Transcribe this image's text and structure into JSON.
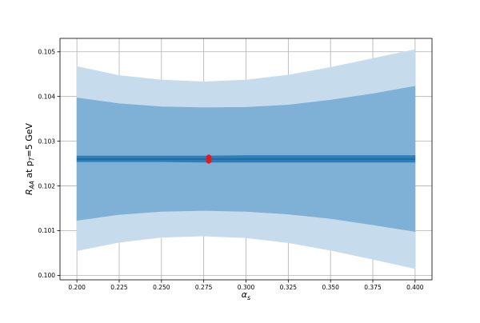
{
  "chart_data": {
    "type": "area",
    "xlim": [
      0.19,
      0.41
    ],
    "ylim": [
      0.0999,
      0.1053
    ],
    "xticks": [
      0.2,
      0.225,
      0.25,
      0.275,
      0.3,
      0.325,
      0.35,
      0.375,
      0.4
    ],
    "xtick_labels": [
      "0.200",
      "0.225",
      "0.250",
      "0.275",
      "0.300",
      "0.325",
      "0.350",
      "0.375",
      "0.400"
    ],
    "yticks": [
      0.1,
      0.101,
      0.102,
      0.103,
      0.104,
      0.105
    ],
    "ytick_labels": [
      "0.100",
      "0.101",
      "0.102",
      "0.103",
      "0.104",
      "0.105"
    ],
    "xlabel": "αs",
    "ylabel": "RAA at pT=5 GeV",
    "grid": true,
    "x": [
      0.2,
      0.225,
      0.25,
      0.275,
      0.3,
      0.325,
      0.35,
      0.375,
      0.4
    ],
    "bands": [
      {
        "role": "outer band",
        "color": "#c6dbec",
        "upper": [
          0.10467,
          0.10447,
          0.10437,
          0.10433,
          0.10437,
          0.10448,
          0.10465,
          0.10485,
          0.10505
        ],
        "lower": [
          0.10055,
          0.10074,
          0.10085,
          0.10088,
          0.10084,
          0.10073,
          0.10056,
          0.10036,
          0.10015
        ]
      },
      {
        "role": "middle band",
        "color": "#7fb0d6",
        "upper": [
          0.10397,
          0.10384,
          0.10377,
          0.10375,
          0.10376,
          0.10381,
          0.10392,
          0.10406,
          0.10423
        ],
        "lower": [
          0.10123,
          0.10136,
          0.10143,
          0.10145,
          0.10143,
          0.10137,
          0.10127,
          0.10113,
          0.10098
        ]
      },
      {
        "role": "inner band",
        "color": "#2e7fb8",
        "upper": [
          0.10267,
          0.10267,
          0.10267,
          0.10267,
          0.10268,
          0.10268,
          0.10268,
          0.10268,
          0.10268
        ],
        "lower": [
          0.10254,
          0.10254,
          0.10254,
          0.10253,
          0.10253,
          0.10253,
          0.10253,
          0.10253,
          0.10253
        ]
      }
    ],
    "central_line": {
      "color": "#1f5f99",
      "y": [
        0.1026,
        0.1026,
        0.1026,
        0.1026,
        0.1026,
        0.1026,
        0.1026,
        0.1026,
        0.1026
      ]
    },
    "points": {
      "color": "#e8171b",
      "x": [
        0.278,
        0.278,
        0.278
      ],
      "y": [
        0.10264,
        0.1026,
        0.10256
      ]
    }
  }
}
